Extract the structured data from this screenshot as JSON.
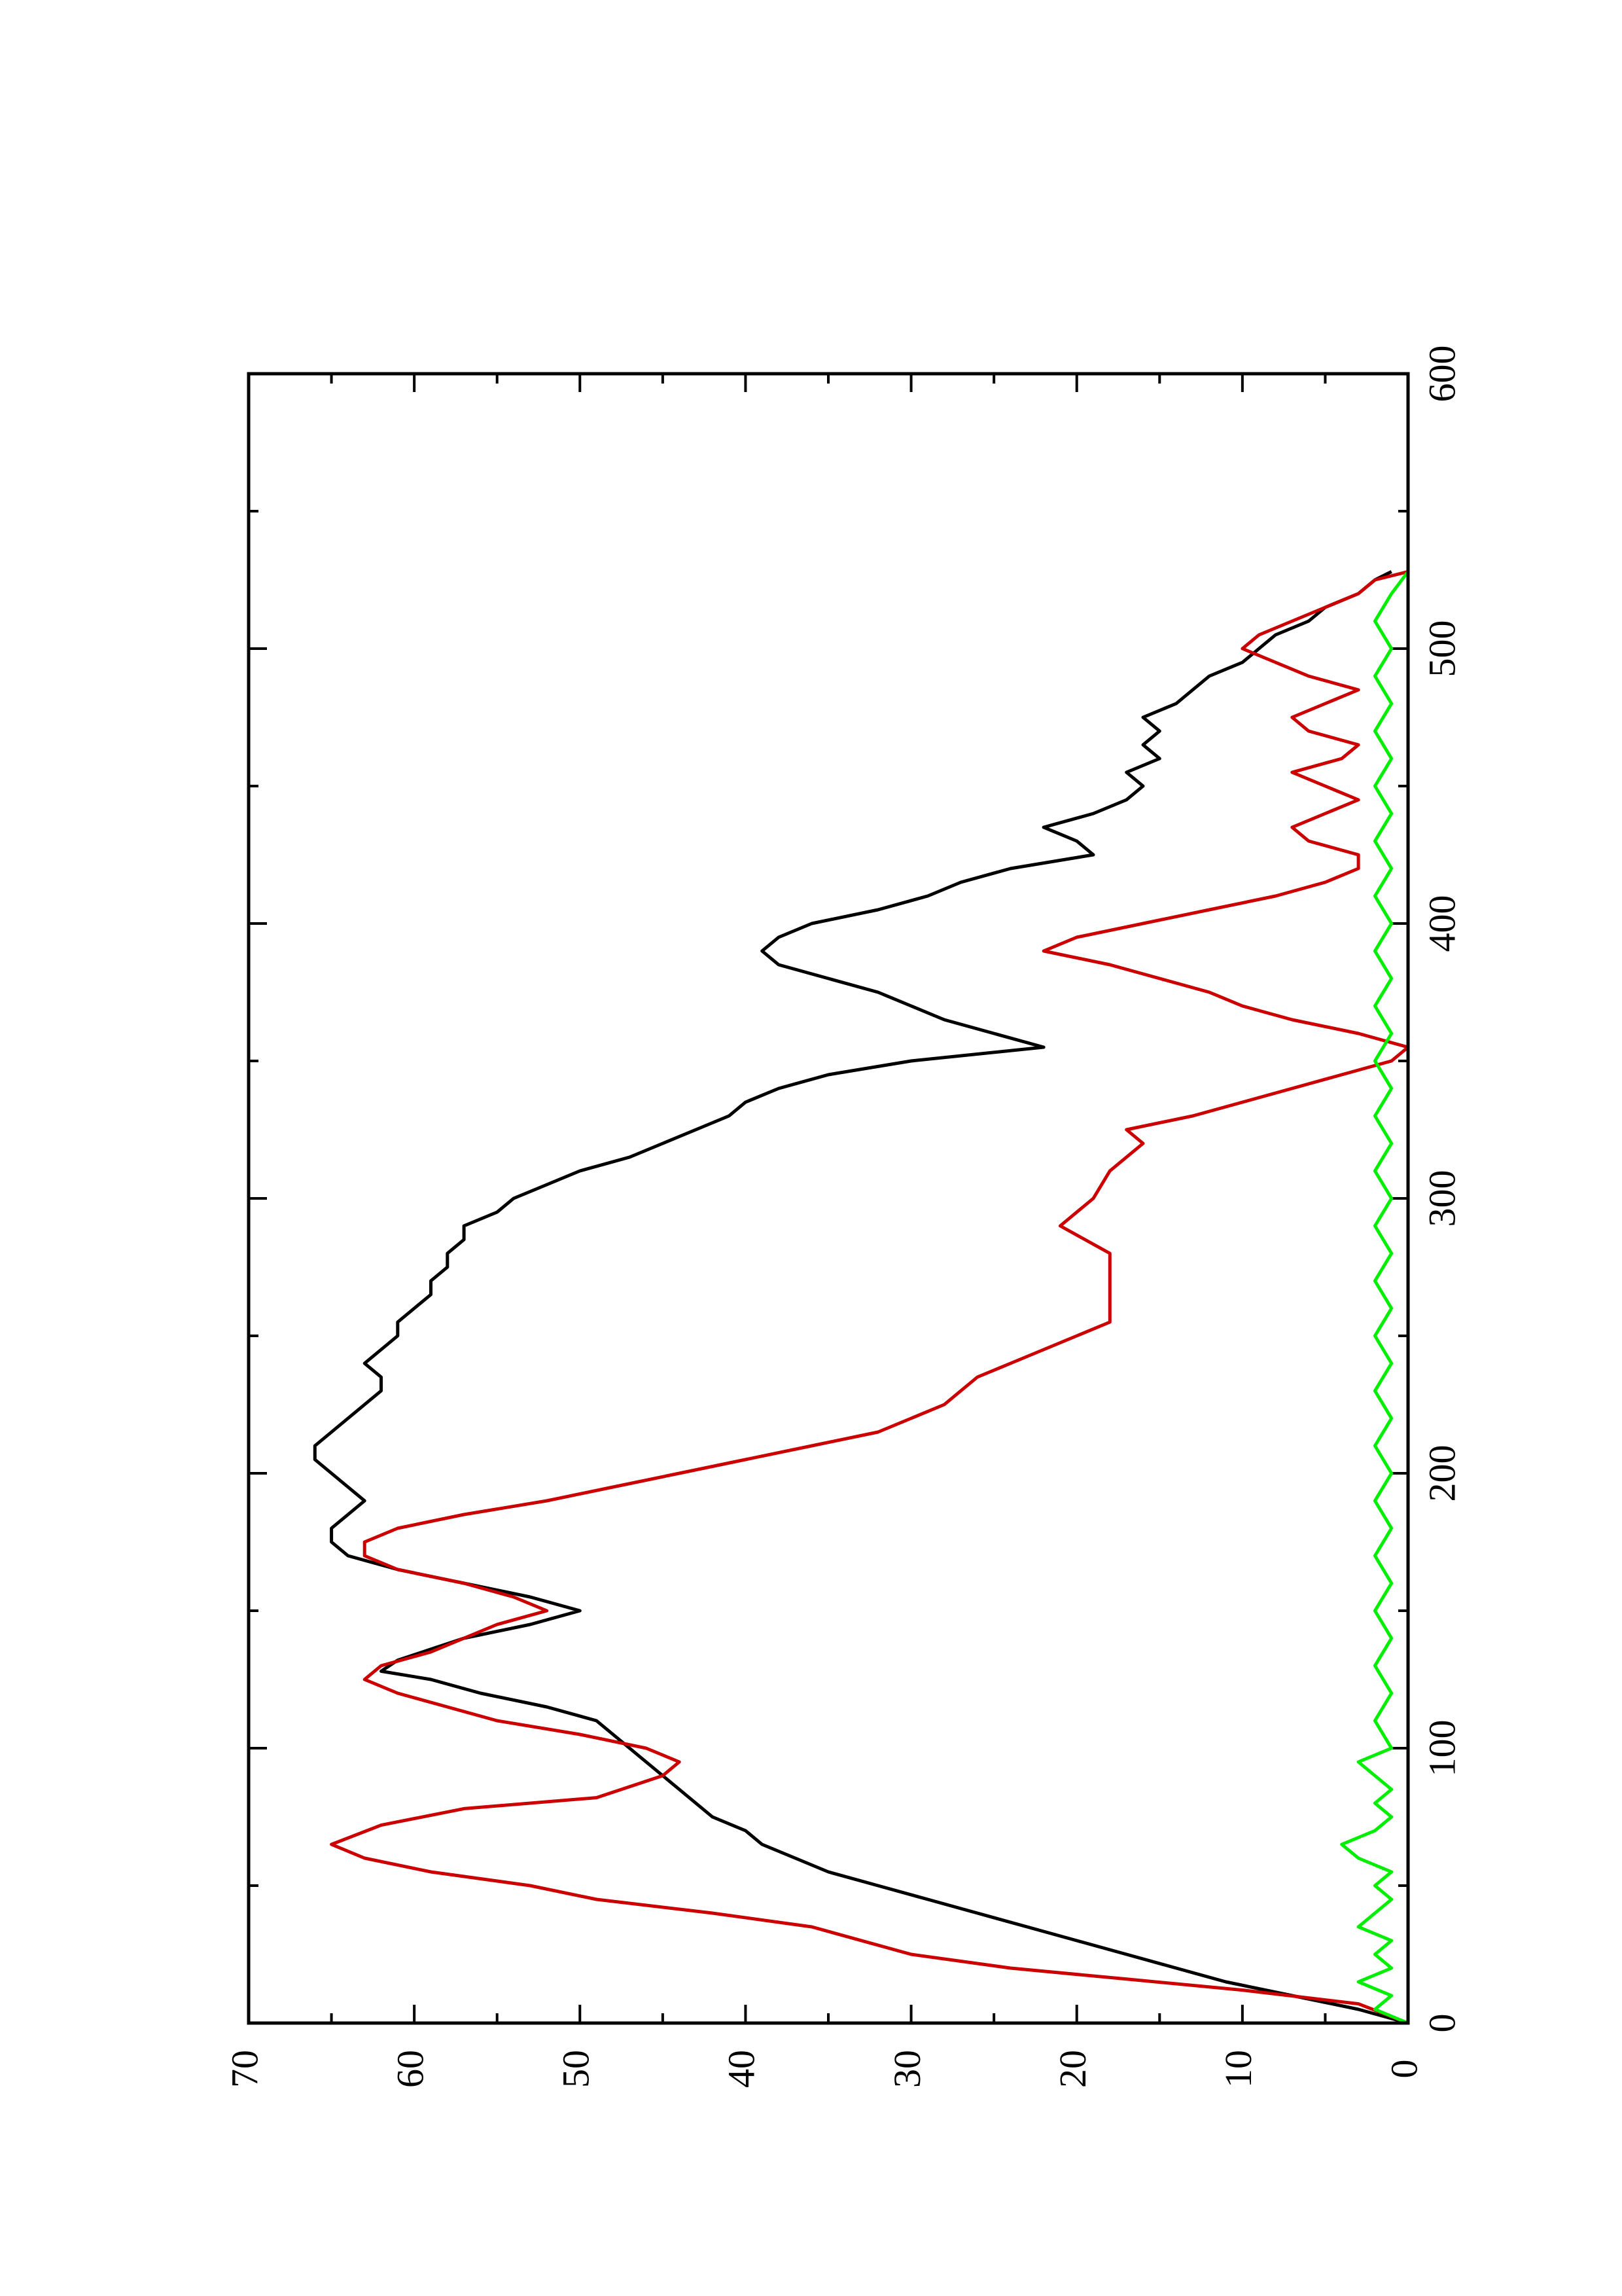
{
  "chart_data": {
    "type": "line",
    "orientation": "rotated-90-ccw",
    "title": "",
    "xlabel": "",
    "ylabel": "",
    "xlim": [
      0,
      600
    ],
    "ylim": [
      0,
      70
    ],
    "grid": false,
    "legend": "none",
    "x_ticks": [
      0,
      100,
      200,
      300,
      400,
      500,
      600
    ],
    "x_minor_ticks": [
      50,
      150,
      250,
      350,
      450,
      550
    ],
    "y_ticks": [
      0,
      10,
      20,
      30,
      40,
      50,
      60,
      70
    ],
    "y_minor_ticks": [
      5,
      15,
      25,
      35,
      45,
      55,
      65
    ],
    "series": [
      {
        "color": "#000000",
        "points": [
          [
            0,
            0
          ],
          [
            5,
            3
          ],
          [
            10,
            7
          ],
          [
            15,
            11
          ],
          [
            20,
            14
          ],
          [
            25,
            17
          ],
          [
            30,
            20
          ],
          [
            35,
            23
          ],
          [
            40,
            26
          ],
          [
            45,
            29
          ],
          [
            50,
            32
          ],
          [
            55,
            35
          ],
          [
            60,
            37
          ],
          [
            65,
            39
          ],
          [
            70,
            40
          ],
          [
            75,
            42
          ],
          [
            80,
            43
          ],
          [
            85,
            44
          ],
          [
            90,
            45
          ],
          [
            95,
            46
          ],
          [
            100,
            47
          ],
          [
            105,
            48
          ],
          [
            110,
            49
          ],
          [
            115,
            52
          ],
          [
            120,
            56
          ],
          [
            125,
            59
          ],
          [
            128,
            62
          ],
          [
            132,
            61
          ],
          [
            136,
            59
          ],
          [
            140,
            57
          ],
          [
            145,
            53
          ],
          [
            150,
            50
          ],
          [
            155,
            53
          ],
          [
            160,
            57
          ],
          [
            165,
            61
          ],
          [
            170,
            64
          ],
          [
            175,
            65
          ],
          [
            180,
            65
          ],
          [
            185,
            64
          ],
          [
            190,
            63
          ],
          [
            195,
            64
          ],
          [
            200,
            65
          ],
          [
            205,
            66
          ],
          [
            210,
            66
          ],
          [
            215,
            65
          ],
          [
            220,
            64
          ],
          [
            225,
            63
          ],
          [
            230,
            62
          ],
          [
            235,
            62
          ],
          [
            240,
            63
          ],
          [
            245,
            62
          ],
          [
            250,
            61
          ],
          [
            255,
            61
          ],
          [
            260,
            60
          ],
          [
            265,
            59
          ],
          [
            270,
            59
          ],
          [
            275,
            58
          ],
          [
            280,
            58
          ],
          [
            285,
            57
          ],
          [
            290,
            57
          ],
          [
            295,
            55
          ],
          [
            300,
            54
          ],
          [
            305,
            52
          ],
          [
            310,
            50
          ],
          [
            315,
            47
          ],
          [
            320,
            45
          ],
          [
            325,
            43
          ],
          [
            330,
            41
          ],
          [
            335,
            40
          ],
          [
            340,
            38
          ],
          [
            345,
            35
          ],
          [
            350,
            30
          ],
          [
            355,
            22
          ],
          [
            360,
            25
          ],
          [
            365,
            28
          ],
          [
            370,
            30
          ],
          [
            375,
            32
          ],
          [
            380,
            35
          ],
          [
            385,
            38
          ],
          [
            390,
            39
          ],
          [
            395,
            38
          ],
          [
            400,
            36
          ],
          [
            405,
            32
          ],
          [
            410,
            29
          ],
          [
            415,
            27
          ],
          [
            420,
            24
          ],
          [
            425,
            19
          ],
          [
            430,
            20
          ],
          [
            435,
            22
          ],
          [
            440,
            19
          ],
          [
            445,
            17
          ],
          [
            450,
            16
          ],
          [
            455,
            17
          ],
          [
            460,
            15
          ],
          [
            465,
            16
          ],
          [
            470,
            15
          ],
          [
            475,
            16
          ],
          [
            480,
            14
          ],
          [
            485,
            13
          ],
          [
            490,
            12
          ],
          [
            495,
            10
          ],
          [
            500,
            9
          ],
          [
            505,
            8
          ],
          [
            510,
            6
          ],
          [
            515,
            5
          ],
          [
            520,
            3
          ],
          [
            525,
            2
          ],
          [
            528,
            1
          ]
        ]
      },
      {
        "color": "#cc0000",
        "points": [
          [
            0,
            0
          ],
          [
            7,
            3
          ],
          [
            12,
            10
          ],
          [
            16,
            17
          ],
          [
            20,
            24
          ],
          [
            25,
            30
          ],
          [
            35,
            36
          ],
          [
            40,
            42
          ],
          [
            45,
            49
          ],
          [
            50,
            53
          ],
          [
            55,
            59
          ],
          [
            60,
            63
          ],
          [
            65,
            65
          ],
          [
            72,
            62
          ],
          [
            78,
            57
          ],
          [
            82,
            49
          ],
          [
            90,
            45
          ],
          [
            95,
            44
          ],
          [
            100,
            46
          ],
          [
            105,
            50
          ],
          [
            110,
            55
          ],
          [
            115,
            58
          ],
          [
            120,
            61
          ],
          [
            125,
            63
          ],
          [
            130,
            62
          ],
          [
            135,
            59
          ],
          [
            140,
            57
          ],
          [
            145,
            55
          ],
          [
            150,
            52
          ],
          [
            155,
            54
          ],
          [
            160,
            57
          ],
          [
            165,
            61
          ],
          [
            170,
            63
          ],
          [
            175,
            63
          ],
          [
            180,
            61
          ],
          [
            185,
            57
          ],
          [
            190,
            52
          ],
          [
            195,
            48
          ],
          [
            200,
            44
          ],
          [
            205,
            40
          ],
          [
            210,
            36
          ],
          [
            215,
            32
          ],
          [
            220,
            30
          ],
          [
            225,
            28
          ],
          [
            230,
            27
          ],
          [
            235,
            26
          ],
          [
            240,
            24
          ],
          [
            245,
            22
          ],
          [
            250,
            20
          ],
          [
            255,
            18
          ],
          [
            260,
            18
          ],
          [
            270,
            18
          ],
          [
            280,
            18
          ],
          [
            290,
            21
          ],
          [
            300,
            19
          ],
          [
            310,
            18
          ],
          [
            320,
            16
          ],
          [
            325,
            17
          ],
          [
            330,
            13
          ],
          [
            335,
            10
          ],
          [
            340,
            7
          ],
          [
            345,
            4
          ],
          [
            350,
            1
          ],
          [
            355,
            0
          ],
          [
            360,
            3
          ],
          [
            365,
            7
          ],
          [
            370,
            10
          ],
          [
            375,
            12
          ],
          [
            380,
            15
          ],
          [
            385,
            18
          ],
          [
            390,
            22
          ],
          [
            395,
            20
          ],
          [
            400,
            16
          ],
          [
            405,
            12
          ],
          [
            410,
            8
          ],
          [
            415,
            5
          ],
          [
            420,
            3
          ],
          [
            425,
            3
          ],
          [
            430,
            6
          ],
          [
            435,
            7
          ],
          [
            440,
            5
          ],
          [
            445,
            3
          ],
          [
            450,
            5
          ],
          [
            455,
            7
          ],
          [
            460,
            4
          ],
          [
            465,
            3
          ],
          [
            470,
            6
          ],
          [
            475,
            7
          ],
          [
            480,
            5
          ],
          [
            485,
            3
          ],
          [
            490,
            6
          ],
          [
            495,
            8
          ],
          [
            500,
            10
          ],
          [
            505,
            9
          ],
          [
            510,
            7
          ],
          [
            515,
            5
          ],
          [
            520,
            3
          ],
          [
            525,
            2
          ],
          [
            528,
            0
          ]
        ]
      },
      {
        "color": "#00ee00",
        "points": [
          [
            0,
            0
          ],
          [
            5,
            2
          ],
          [
            10,
            1
          ],
          [
            15,
            3
          ],
          [
            20,
            1
          ],
          [
            25,
            2
          ],
          [
            30,
            1
          ],
          [
            35,
            3
          ],
          [
            40,
            2
          ],
          [
            45,
            1
          ],
          [
            50,
            2
          ],
          [
            55,
            1
          ],
          [
            60,
            3
          ],
          [
            65,
            4
          ],
          [
            70,
            2
          ],
          [
            75,
            1
          ],
          [
            80,
            2
          ],
          [
            85,
            1
          ],
          [
            90,
            2
          ],
          [
            95,
            3
          ],
          [
            100,
            1
          ],
          [
            110,
            2
          ],
          [
            120,
            1
          ],
          [
            130,
            2
          ],
          [
            140,
            1
          ],
          [
            150,
            2
          ],
          [
            160,
            1
          ],
          [
            170,
            2
          ],
          [
            180,
            1
          ],
          [
            190,
            2
          ],
          [
            200,
            1
          ],
          [
            210,
            2
          ],
          [
            220,
            1
          ],
          [
            230,
            2
          ],
          [
            240,
            1
          ],
          [
            250,
            2
          ],
          [
            260,
            1
          ],
          [
            270,
            2
          ],
          [
            280,
            1
          ],
          [
            290,
            2
          ],
          [
            300,
            1
          ],
          [
            310,
            2
          ],
          [
            320,
            1
          ],
          [
            330,
            2
          ],
          [
            340,
            1
          ],
          [
            350,
            2
          ],
          [
            360,
            1
          ],
          [
            370,
            2
          ],
          [
            380,
            1
          ],
          [
            390,
            2
          ],
          [
            400,
            1
          ],
          [
            410,
            2
          ],
          [
            420,
            1
          ],
          [
            430,
            2
          ],
          [
            440,
            1
          ],
          [
            450,
            2
          ],
          [
            460,
            1
          ],
          [
            470,
            2
          ],
          [
            480,
            1
          ],
          [
            490,
            2
          ],
          [
            500,
            1
          ],
          [
            510,
            2
          ],
          [
            520,
            1
          ],
          [
            528,
            0
          ]
        ]
      }
    ]
  }
}
